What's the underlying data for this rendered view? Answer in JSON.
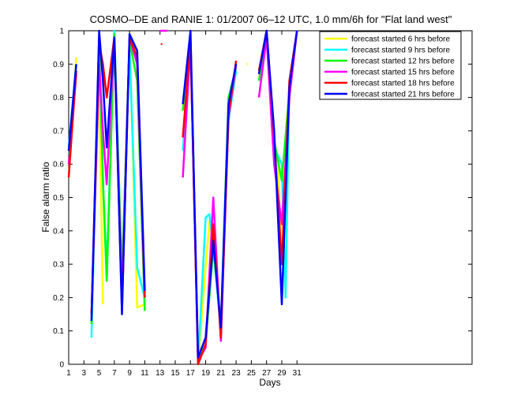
{
  "chart_data": {
    "type": "line",
    "title": "COSMO–DE and RANIE 1: 01/2007 06–12 UTC, 1.0 mm/6h for \"Flat land west\"",
    "xlabel": "Days",
    "ylabel": "False alarm ratio",
    "xlim": [
      1,
      54
    ],
    "ylim": [
      0,
      1
    ],
    "xticks": [
      1,
      3,
      5,
      7,
      9,
      11,
      13,
      15,
      17,
      19,
      21,
      23,
      25,
      27,
      29,
      31
    ],
    "yticks": [
      0,
      0.1,
      0.2,
      0.3,
      0.4,
      0.5,
      0.6,
      0.7,
      0.8,
      0.9,
      1
    ],
    "ytick_labels": [
      "0",
      "0.1",
      "0.2",
      "0.3",
      "0.4",
      "0.5",
      "0.6",
      "0.7",
      "0.8",
      "0.9",
      "1"
    ],
    "legend_position": "top-right",
    "series": [
      {
        "name": "forecast started 6 hrs before",
        "color": "#ffff00",
        "points": [
          [
            1,
            0.6
          ],
          [
            2,
            0.92
          ],
          null,
          [
            4,
            0.14
          ],
          [
            5,
            0.86
          ],
          [
            5.5,
            0.18
          ],
          null,
          [
            7,
            1.0
          ],
          [
            8,
            0.27
          ],
          [
            9,
            0.97
          ],
          [
            10,
            0.17
          ],
          [
            11,
            0.18
          ],
          null,
          [
            16,
            0.78
          ],
          [
            17,
            0.97
          ],
          [
            18,
            0.0
          ],
          [
            19,
            0.29
          ],
          [
            19.5,
            0.43
          ],
          [
            20,
            0.35
          ],
          [
            21,
            0.12
          ],
          [
            22,
            0.77
          ],
          [
            23,
            0.9
          ],
          null,
          [
            24.5,
            0.9
          ],
          null,
          [
            26,
            0.88
          ],
          [
            27,
            1.0
          ],
          [
            28,
            0.68
          ],
          [
            28.5,
            0.6
          ],
          [
            29,
            0.3
          ],
          [
            30,
            0.8
          ],
          [
            31,
            1.0
          ]
        ]
      },
      {
        "name": "forecast started 9 hrs before",
        "color": "#00ffff",
        "points": [
          [
            1,
            0.65
          ],
          [
            2,
            0.9
          ],
          null,
          [
            4,
            0.08
          ],
          [
            5,
            0.98
          ],
          [
            5.5,
            0.55
          ],
          [
            6,
            0.28
          ],
          [
            7,
            1.0
          ],
          [
            8,
            0.27
          ],
          [
            9,
            0.95
          ],
          [
            10,
            0.29
          ],
          [
            11,
            0.2
          ],
          null,
          [
            16,
            0.64
          ],
          [
            17,
            0.97
          ],
          [
            18,
            0.0
          ],
          [
            19,
            0.44
          ],
          [
            19.5,
            0.45
          ],
          [
            20,
            0.35
          ],
          [
            21,
            0.1
          ],
          [
            22,
            0.73
          ],
          [
            23,
            0.88
          ],
          null,
          [
            26,
            0.88
          ],
          [
            27,
            0.99
          ],
          [
            28,
            0.65
          ],
          [
            29,
            0.6
          ],
          [
            29.5,
            0.2
          ],
          [
            30,
            0.85
          ],
          [
            31,
            1.0
          ]
        ]
      },
      {
        "name": "forecast started 12 hrs before",
        "color": "#00ff00",
        "points": [
          [
            1,
            0.62
          ],
          [
            2,
            0.88
          ],
          null,
          [
            4,
            0.12
          ],
          [
            5,
            0.95
          ],
          [
            5.5,
            0.55
          ],
          [
            6,
            0.25
          ],
          [
            7,
            0.99
          ],
          [
            8,
            0.25
          ],
          [
            9,
            0.97
          ],
          [
            10,
            0.85
          ],
          [
            11,
            0.16
          ],
          null,
          [
            16,
            0.76
          ],
          [
            17,
            0.98
          ],
          [
            18,
            0.02
          ],
          [
            19,
            0.06
          ],
          [
            20,
            0.35
          ],
          [
            21,
            0.12
          ],
          [
            22,
            0.8
          ],
          [
            23,
            0.89
          ],
          null,
          [
            26,
            0.85
          ],
          [
            27,
            1.0
          ],
          [
            28,
            0.67
          ],
          [
            29,
            0.55
          ],
          [
            30,
            0.82
          ],
          [
            31,
            1.0
          ]
        ]
      },
      {
        "name": "forecast started 15 hrs before",
        "color": "#ff00ff",
        "points": [
          [
            1,
            0.6
          ],
          [
            2,
            0.87
          ],
          null,
          [
            4,
            0.15
          ],
          [
            5,
            0.9
          ],
          [
            5.5,
            0.7
          ],
          [
            6,
            0.54
          ],
          [
            7,
            0.98
          ],
          [
            8,
            0.2
          ],
          [
            9,
            0.98
          ],
          [
            10,
            0.9
          ],
          [
            11,
            0.2
          ],
          null,
          [
            13,
            1.0
          ],
          [
            14,
            1.0
          ],
          null,
          [
            16,
            0.56
          ],
          [
            17,
            0.96
          ],
          [
            18,
            0.01
          ],
          [
            19,
            0.05
          ],
          [
            20,
            0.5
          ],
          [
            21,
            0.07
          ],
          [
            22,
            0.74
          ],
          [
            23,
            0.9
          ],
          null,
          [
            26,
            0.8
          ],
          [
            27,
            0.98
          ],
          [
            28,
            0.6
          ],
          [
            29,
            0.42
          ],
          [
            30,
            0.8
          ],
          [
            31,
            1.0
          ]
        ]
      },
      {
        "name": "forecast started 18 hrs before",
        "color": "#ff0000",
        "points": [
          [
            1,
            0.56
          ],
          [
            2,
            0.88
          ],
          null,
          [
            4,
            0.15
          ],
          [
            5,
            0.96
          ],
          [
            5.5,
            0.9
          ],
          [
            6,
            0.8
          ],
          [
            7,
            0.98
          ],
          [
            8,
            0.16
          ],
          [
            9,
            0.98
          ],
          [
            10,
            0.92
          ],
          [
            11,
            0.2
          ],
          null,
          [
            13.2,
            0.96
          ],
          null,
          [
            16,
            0.68
          ],
          [
            17,
            0.97
          ],
          [
            18,
            0.0
          ],
          [
            19,
            0.06
          ],
          [
            20,
            0.42
          ],
          [
            21,
            0.08
          ],
          [
            22,
            0.75
          ],
          [
            23,
            0.91
          ],
          null,
          [
            26,
            0.88
          ],
          [
            27,
            1.0
          ],
          [
            28,
            0.68
          ],
          [
            29,
            0.3
          ],
          [
            30,
            0.85
          ],
          [
            31,
            1.0
          ]
        ]
      },
      {
        "name": "forecast started 21 hrs before",
        "color": "#0000ff",
        "points": [
          [
            1,
            0.64
          ],
          [
            2,
            0.9
          ],
          null,
          [
            4,
            0.13
          ],
          [
            5,
            1.0
          ],
          [
            5.5,
            0.85
          ],
          [
            6,
            0.65
          ],
          [
            7,
            0.98
          ],
          [
            8,
            0.15
          ],
          [
            9,
            0.99
          ],
          [
            10,
            0.94
          ],
          [
            11,
            0.22
          ],
          null,
          [
            16,
            0.78
          ],
          [
            17,
            1.0
          ],
          [
            18,
            0.02
          ],
          [
            19,
            0.08
          ],
          [
            20,
            0.37
          ],
          [
            21,
            0.11
          ],
          [
            22,
            0.78
          ],
          [
            23,
            0.9
          ],
          null,
          [
            26,
            0.87
          ],
          [
            27,
            1.0
          ],
          [
            28,
            0.7
          ],
          [
            29,
            0.18
          ],
          [
            30,
            0.83
          ],
          [
            31,
            1.0
          ]
        ]
      }
    ]
  }
}
